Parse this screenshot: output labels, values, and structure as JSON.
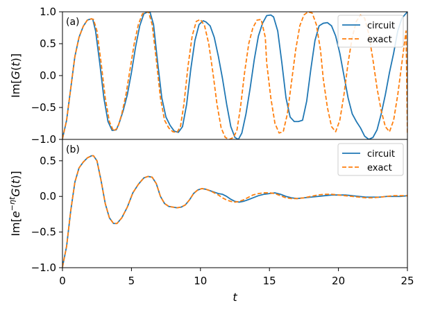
{
  "chart_data": [
    {
      "type": "line",
      "panel_label": "(a)",
      "ylabel": "Im[G(t)]",
      "xlim": [
        0,
        25
      ],
      "ylim": [
        -1.0,
        1.0
      ],
      "yticks": [
        "−1.0",
        "−0.5",
        "0.0",
        "0.5",
        "1.0"
      ],
      "yticks_values": [
        -1.0,
        -0.5,
        0.0,
        0.5,
        1.0
      ],
      "legend_position": "top-right",
      "series": [
        {
          "name": "circuit",
          "color": "#1f77b4",
          "style": "solid",
          "x": [
            0,
            0.3,
            0.6,
            0.9,
            1.2,
            1.5,
            1.8,
            2.1,
            2.2,
            2.4,
            2.7,
            3.0,
            3.3,
            3.6,
            3.9,
            4.1,
            4.4,
            4.7,
            5.0,
            5.3,
            5.6,
            5.9,
            6.2,
            6.35,
            6.6,
            6.9,
            7.2,
            7.5,
            7.8,
            8.1,
            8.4,
            8.7,
            9.0,
            9.3,
            9.6,
            9.9,
            10.2,
            10.4,
            10.7,
            11.0,
            11.3,
            11.6,
            11.9,
            12.2,
            12.5,
            12.75,
            13.0,
            13.3,
            13.6,
            13.9,
            14.2,
            14.5,
            14.8,
            15.1,
            15.3,
            15.6,
            15.9,
            16.2,
            16.5,
            16.8,
            17.1,
            17.4,
            17.7,
            18.0,
            18.3,
            18.6,
            18.9,
            19.2,
            19.5,
            19.8,
            20.1,
            20.4,
            20.7,
            21.0,
            21.3,
            21.6,
            21.9,
            22.2,
            22.5,
            22.8,
            23.1,
            23.4,
            23.7,
            24.0,
            24.3,
            24.6,
            25.0
          ],
          "y": [
            -0.99,
            -0.7,
            -0.2,
            0.3,
            0.6,
            0.77,
            0.87,
            0.89,
            0.88,
            0.7,
            0.2,
            -0.35,
            -0.72,
            -0.86,
            -0.85,
            -0.75,
            -0.55,
            -0.3,
            0.05,
            0.45,
            0.78,
            0.97,
            1.0,
            0.99,
            0.8,
            0.2,
            -0.35,
            -0.65,
            -0.78,
            -0.87,
            -0.89,
            -0.8,
            -0.45,
            0.1,
            0.55,
            0.8,
            0.86,
            0.84,
            0.78,
            0.6,
            0.3,
            -0.05,
            -0.45,
            -0.8,
            -0.97,
            -1.0,
            -0.9,
            -0.6,
            -0.2,
            0.25,
            0.62,
            0.82,
            0.94,
            0.95,
            0.92,
            0.7,
            0.2,
            -0.35,
            -0.65,
            -0.72,
            -0.72,
            -0.7,
            -0.4,
            0.1,
            0.55,
            0.78,
            0.82,
            0.83,
            0.78,
            0.62,
            0.35,
            0.0,
            -0.35,
            -0.6,
            -0.72,
            -0.82,
            -0.95,
            -1.0,
            -0.97,
            -0.85,
            -0.6,
            -0.3,
            0.05,
            0.35,
            0.7,
            0.9,
            1.0
          ]
        },
        {
          "name": "exact",
          "color": "#ff7f0e",
          "style": "dashed",
          "x": [
            0,
            0.3,
            0.6,
            0.9,
            1.2,
            1.5,
            1.8,
            2.1,
            2.25,
            2.5,
            2.8,
            3.1,
            3.4,
            3.7,
            4.0,
            4.3,
            4.6,
            4.9,
            5.2,
            5.5,
            5.8,
            6.1,
            6.25,
            6.5,
            6.8,
            7.1,
            7.4,
            7.7,
            8.0,
            8.3,
            8.55,
            8.8,
            9.1,
            9.4,
            9.7,
            10.0,
            10.3,
            10.6,
            10.9,
            11.2,
            11.5,
            11.8,
            12.1,
            12.4,
            12.65,
            12.9,
            13.2,
            13.5,
            13.8,
            14.1,
            14.4,
            14.7,
            14.8,
            15.1,
            15.4,
            15.7,
            16.0,
            16.3,
            16.6,
            16.9,
            17.2,
            17.5,
            17.8,
            18.1,
            18.4,
            18.7,
            18.9,
            19.2,
            19.5,
            19.8,
            20.1,
            20.4,
            20.7,
            21.0,
            21.3,
            21.6,
            21.9,
            22.2,
            22.5,
            22.8,
            23.1,
            23.4,
            23.7,
            24.0,
            24.3,
            24.6,
            24.9,
            25.0
          ],
          "y": [
            -0.99,
            -0.7,
            -0.2,
            0.3,
            0.6,
            0.77,
            0.87,
            0.89,
            0.88,
            0.7,
            0.2,
            -0.35,
            -0.72,
            -0.87,
            -0.82,
            -0.6,
            -0.3,
            0.1,
            0.5,
            0.8,
            0.97,
            1.0,
            0.99,
            0.8,
            0.25,
            -0.35,
            -0.7,
            -0.82,
            -0.88,
            -0.89,
            -0.8,
            -0.45,
            0.15,
            0.62,
            0.85,
            0.88,
            0.78,
            0.5,
            0.05,
            -0.45,
            -0.82,
            -0.97,
            -1.0,
            -0.97,
            -0.85,
            -0.5,
            0.05,
            0.5,
            0.75,
            0.87,
            0.88,
            0.6,
            0.2,
            -0.35,
            -0.75,
            -0.9,
            -0.88,
            -0.6,
            -0.1,
            0.4,
            0.78,
            0.95,
            1.0,
            0.98,
            0.8,
            0.4,
            -0.05,
            -0.5,
            -0.8,
            -0.88,
            -0.7,
            -0.3,
            0.2,
            0.6,
            0.85,
            0.95,
            0.9,
            0.65,
            0.25,
            -0.2,
            -0.55,
            -0.8,
            -0.88,
            -0.7,
            -0.3,
            0.2,
            0.7,
            -0.9
          ]
        }
      ]
    },
    {
      "type": "line",
      "panel_label": "(b)",
      "ylabel": "Im[e^{−ηt} G(t)]",
      "xlabel": "t",
      "xlim": [
        0,
        25
      ],
      "ylim": [
        -1.0,
        0.8
      ],
      "xticks": [
        "0",
        "5",
        "10",
        "15",
        "20",
        "25"
      ],
      "xticks_values": [
        0,
        5,
        10,
        15,
        20,
        25
      ],
      "yticks": [
        "−1.0",
        "−0.5",
        "0.0",
        "0.5"
      ],
      "yticks_values": [
        -1.0,
        -0.5,
        0.0,
        0.5
      ],
      "legend_position": "top-right",
      "series": [
        {
          "name": "circuit",
          "color": "#1f77b4",
          "style": "solid",
          "x": [
            0,
            0.3,
            0.6,
            0.9,
            1.2,
            1.5,
            1.8,
            2.1,
            2.25,
            2.5,
            2.8,
            3.1,
            3.4,
            3.7,
            3.95,
            4.3,
            4.7,
            5.1,
            5.5,
            5.9,
            6.2,
            6.5,
            6.8,
            7.1,
            7.4,
            7.7,
            8.0,
            8.3,
            8.6,
            8.9,
            9.2,
            9.5,
            9.8,
            10.1,
            10.4,
            10.7,
            11.0,
            11.3,
            11.6,
            11.9,
            12.2,
            12.5,
            12.8,
            13.1,
            13.4,
            13.8,
            14.2,
            14.6,
            15.0,
            15.4,
            15.8,
            16.2,
            16.6,
            17.0,
            17.5,
            18.0,
            18.5,
            19.0,
            19.5,
            20.0,
            20.5,
            21.0,
            21.5,
            22.0,
            22.5,
            23.0,
            23.5,
            24.0,
            24.5,
            25.0
          ],
          "y": [
            -0.99,
            -0.7,
            -0.2,
            0.2,
            0.4,
            0.48,
            0.54,
            0.57,
            0.57,
            0.5,
            0.22,
            -0.1,
            -0.3,
            -0.38,
            -0.38,
            -0.3,
            -0.15,
            0.05,
            0.17,
            0.26,
            0.28,
            0.27,
            0.18,
            0.0,
            -0.1,
            -0.14,
            -0.15,
            -0.16,
            -0.15,
            -0.12,
            -0.05,
            0.04,
            0.09,
            0.11,
            0.1,
            0.08,
            0.06,
            0.04,
            0.03,
            0.0,
            -0.04,
            -0.07,
            -0.08,
            -0.07,
            -0.05,
            -0.02,
            0.01,
            0.03,
            0.04,
            0.05,
            0.03,
            0.0,
            -0.02,
            -0.03,
            -0.02,
            -0.01,
            0.0,
            0.01,
            0.02,
            0.02,
            0.02,
            0.01,
            0.0,
            -0.01,
            -0.01,
            -0.01,
            0.0,
            0.0,
            0.0,
            0.01
          ]
        },
        {
          "name": "exact",
          "color": "#ff7f0e",
          "style": "dashed",
          "x": [
            0,
            0.3,
            0.6,
            0.9,
            1.2,
            1.5,
            1.8,
            2.1,
            2.25,
            2.5,
            2.8,
            3.1,
            3.4,
            3.7,
            3.95,
            4.3,
            4.7,
            5.1,
            5.5,
            5.9,
            6.2,
            6.5,
            6.8,
            7.1,
            7.4,
            7.7,
            8.0,
            8.3,
            8.6,
            8.9,
            9.2,
            9.5,
            9.8,
            10.1,
            10.4,
            10.7,
            11.0,
            11.3,
            11.6,
            11.9,
            12.2,
            12.5,
            12.8,
            13.1,
            13.4,
            13.8,
            14.2,
            14.6,
            15.0,
            15.4,
            15.8,
            16.2,
            16.6,
            17.0,
            17.5,
            18.0,
            18.5,
            19.0,
            19.5,
            20.0,
            20.5,
            21.0,
            21.5,
            22.0,
            22.5,
            23.0,
            23.5,
            24.0,
            24.5,
            25.0
          ],
          "y": [
            -0.99,
            -0.7,
            -0.2,
            0.2,
            0.4,
            0.48,
            0.54,
            0.57,
            0.57,
            0.5,
            0.22,
            -0.1,
            -0.3,
            -0.38,
            -0.38,
            -0.3,
            -0.15,
            0.05,
            0.17,
            0.26,
            0.28,
            0.27,
            0.18,
            0.0,
            -0.1,
            -0.14,
            -0.15,
            -0.16,
            -0.15,
            -0.12,
            -0.05,
            0.04,
            0.09,
            0.11,
            0.1,
            0.08,
            0.05,
            0.02,
            -0.02,
            -0.05,
            -0.07,
            -0.08,
            -0.07,
            -0.05,
            -0.02,
            0.02,
            0.04,
            0.05,
            0.05,
            0.04,
            0.01,
            -0.02,
            -0.03,
            -0.03,
            -0.02,
            0.0,
            0.02,
            0.03,
            0.03,
            0.02,
            0.01,
            0.0,
            -0.01,
            -0.02,
            -0.02,
            -0.01,
            0.0,
            0.01,
            0.01,
            0.01
          ]
        }
      ]
    }
  ]
}
